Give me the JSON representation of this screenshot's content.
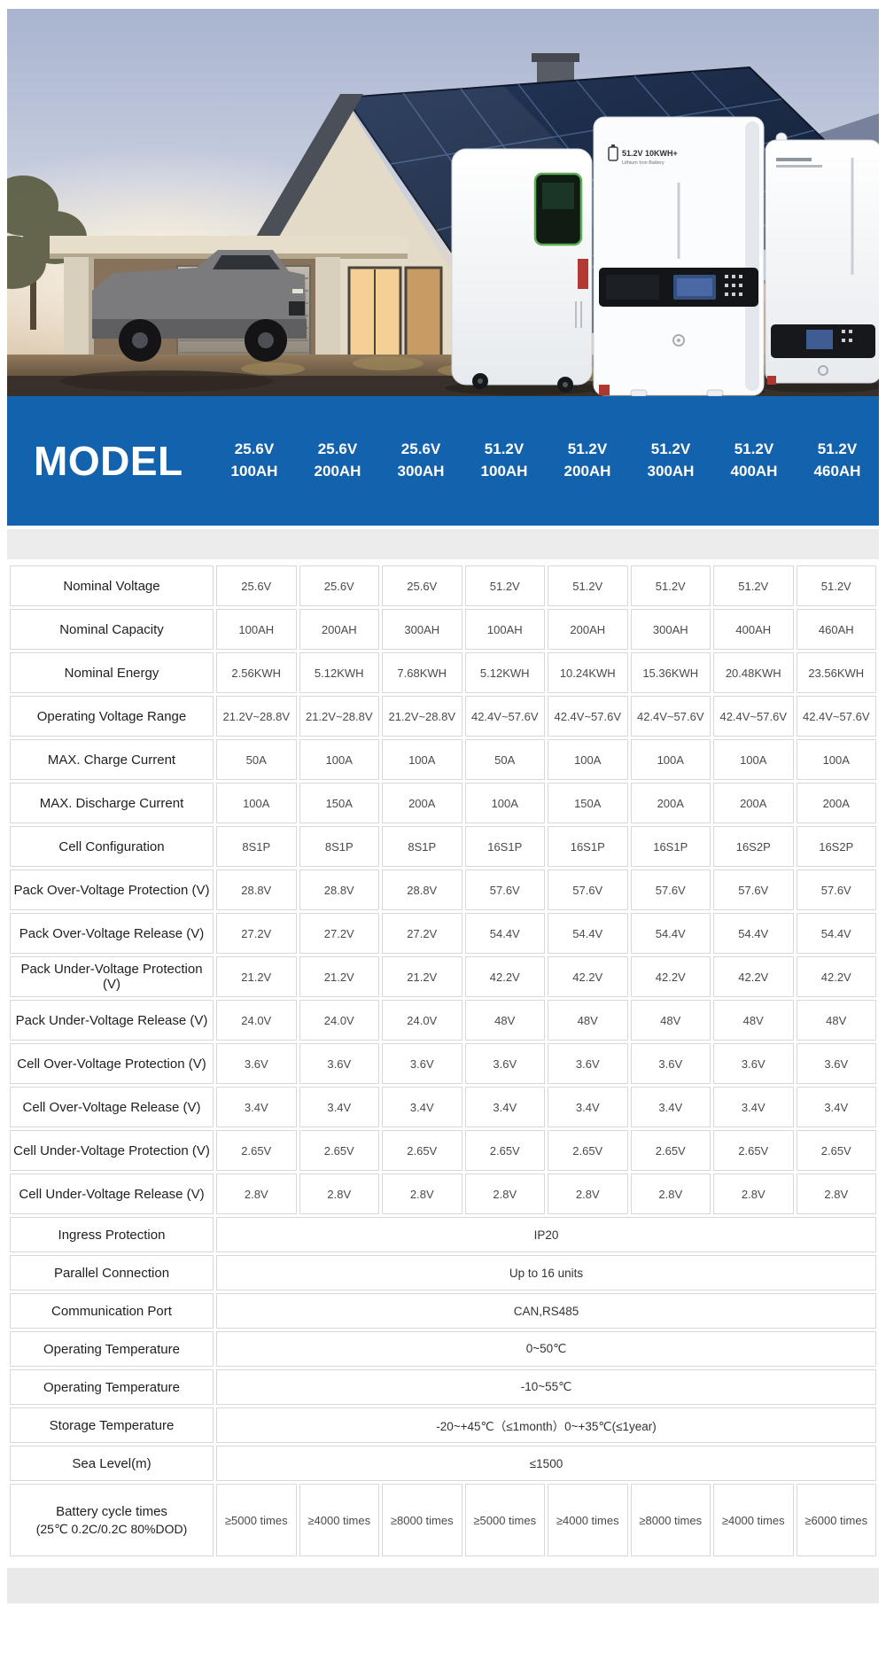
{
  "colors": {
    "accent_blue": "#1362ad",
    "band_gray": "#ececec",
    "table_border": "#d8d8d8"
  },
  "hero": {
    "wall_unit_label_line1": "51.2V 10KWH+",
    "wall_unit_label_line2": "Lithium Iron Battery"
  },
  "header": {
    "title": "MODEL",
    "columns": [
      {
        "voltage": "25.6V",
        "capacity": "100AH"
      },
      {
        "voltage": "25.6V",
        "capacity": "200AH"
      },
      {
        "voltage": "25.6V",
        "capacity": "300AH"
      },
      {
        "voltage": "51.2V",
        "capacity": "100AH"
      },
      {
        "voltage": "51.2V",
        "capacity": "200AH"
      },
      {
        "voltage": "51.2V",
        "capacity": "300AH"
      },
      {
        "voltage": "51.2V",
        "capacity": "400AH"
      },
      {
        "voltage": "51.2V",
        "capacity": "460AH"
      }
    ]
  },
  "table": {
    "rows": [
      {
        "label": "Nominal Voltage",
        "values": [
          "25.6V",
          "25.6V",
          "25.6V",
          "51.2V",
          "51.2V",
          "51.2V",
          "51.2V",
          "51.2V"
        ]
      },
      {
        "label": "Nominal Capacity",
        "values": [
          "100AH",
          "200AH",
          "300AH",
          "100AH",
          "200AH",
          "300AH",
          "400AH",
          "460AH"
        ]
      },
      {
        "label": "Nominal Energy",
        "values": [
          "2.56KWH",
          "5.12KWH",
          "7.68KWH",
          "5.12KWH",
          "10.24KWH",
          "15.36KWH",
          "20.48KWH",
          "23.56KWH"
        ]
      },
      {
        "label": "Operating Voltage Range",
        "values": [
          "21.2V~28.8V",
          "21.2V~28.8V",
          "21.2V~28.8V",
          "42.4V~57.6V",
          "42.4V~57.6V",
          "42.4V~57.6V",
          "42.4V~57.6V",
          "42.4V~57.6V"
        ]
      },
      {
        "label": "MAX. Charge Current",
        "values": [
          "50A",
          "100A",
          "100A",
          "50A",
          "100A",
          "100A",
          "100A",
          "100A"
        ]
      },
      {
        "label": "MAX. Discharge Current",
        "values": [
          "100A",
          "150A",
          "200A",
          "100A",
          "150A",
          "200A",
          "200A",
          "200A"
        ]
      },
      {
        "label": "Cell Configuration",
        "values": [
          "8S1P",
          "8S1P",
          "8S1P",
          "16S1P",
          "16S1P",
          "16S1P",
          "16S2P",
          "16S2P"
        ]
      },
      {
        "label": "Pack Over-Voltage Protection (V)",
        "values": [
          "28.8V",
          "28.8V",
          "28.8V",
          "57.6V",
          "57.6V",
          "57.6V",
          "57.6V",
          "57.6V"
        ]
      },
      {
        "label": "Pack Over-Voltage Release (V)",
        "values": [
          "27.2V",
          "27.2V",
          "27.2V",
          "54.4V",
          "54.4V",
          "54.4V",
          "54.4V",
          "54.4V"
        ]
      },
      {
        "label": "Pack Under-Voltage Protection (V)",
        "values": [
          "21.2V",
          "21.2V",
          "21.2V",
          "42.2V",
          "42.2V",
          "42.2V",
          "42.2V",
          "42.2V"
        ]
      },
      {
        "label": "Pack Under-Voltage Release (V)",
        "values": [
          "24.0V",
          "24.0V",
          "24.0V",
          "48V",
          "48V",
          "48V",
          "48V",
          "48V"
        ]
      },
      {
        "label": "Cell Over-Voltage Protection (V)",
        "values": [
          "3.6V",
          "3.6V",
          "3.6V",
          "3.6V",
          "3.6V",
          "3.6V",
          "3.6V",
          "3.6V"
        ]
      },
      {
        "label": "Cell Over-Voltage Release (V)",
        "values": [
          "3.4V",
          "3.4V",
          "3.4V",
          "3.4V",
          "3.4V",
          "3.4V",
          "3.4V",
          "3.4V"
        ]
      },
      {
        "label": "Cell Under-Voltage Protection (V)",
        "values": [
          "2.65V",
          "2.65V",
          "2.65V",
          "2.65V",
          "2.65V",
          "2.65V",
          "2.65V",
          "2.65V"
        ]
      },
      {
        "label": "Cell Under-Voltage Release (V)",
        "values": [
          "2.8V",
          "2.8V",
          "2.8V",
          "2.8V",
          "2.8V",
          "2.8V",
          "2.8V",
          "2.8V"
        ]
      },
      {
        "label": "Ingress Protection",
        "merged": "IP20"
      },
      {
        "label": "Parallel Connection",
        "merged": "Up to 16 units"
      },
      {
        "label": "Communication Port",
        "merged": "CAN,RS485"
      },
      {
        "label": "Operating Temperature",
        "merged": "0~50℃"
      },
      {
        "label": "Operating Temperature",
        "merged": "-10~55℃"
      },
      {
        "label": "Storage Temperature",
        "merged": "-20~+45℃（≤1month）0~+35℃(≤1year)"
      },
      {
        "label": "Sea Level(m)",
        "merged": "≤1500"
      },
      {
        "label": "Battery cycle times",
        "label2": "(25℃ 0.2C/0.2C 80%DOD)",
        "values": [
          "≥5000 times",
          "≥4000 times",
          "≥8000 times",
          "≥5000 times",
          "≥4000 times",
          "≥8000 times",
          "≥4000 times",
          "≥6000 times"
        ]
      }
    ]
  }
}
